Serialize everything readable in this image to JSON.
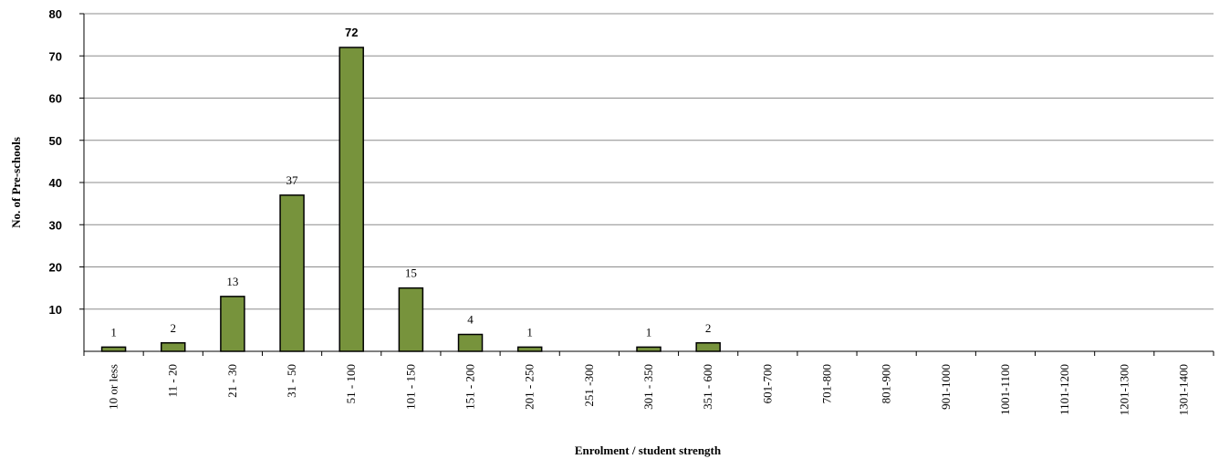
{
  "chart_data": {
    "type": "bar",
    "xlabel": "Enrolment / student strength",
    "ylabel": "No. of Pre-schools",
    "ylim": [
      0,
      80
    ],
    "yticks": [
      10,
      20,
      30,
      40,
      50,
      60,
      70,
      80
    ],
    "grid": true,
    "legend": "none",
    "bar_color": "#77933c",
    "categories": [
      "10  or less",
      "11 - 20",
      "21 - 30",
      "31 - 50",
      "51 - 100",
      "101 - 150",
      "151 - 200",
      "201 - 250",
      "251 -300",
      "301 - 350",
      "351 - 600",
      "601-700",
      "701-800",
      "801-900",
      "901-1000",
      "1001-1100",
      "1101-1200",
      "1201-1300",
      "1301-1400"
    ],
    "values": [
      1,
      2,
      13,
      37,
      72,
      15,
      4,
      1,
      0,
      1,
      2,
      0,
      0,
      0,
      0,
      0,
      0,
      0,
      0
    ],
    "data_labels": [
      "1",
      "2",
      "13",
      "37",
      "72",
      "15",
      "4",
      "1",
      "",
      "1",
      "2",
      "",
      "",
      "",
      "",
      "",
      "",
      "",
      ""
    ]
  }
}
